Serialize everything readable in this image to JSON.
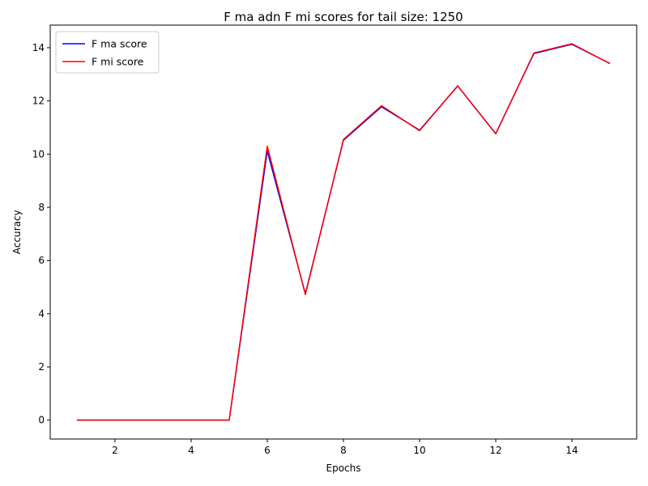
{
  "chart_data": {
    "type": "line",
    "title": "F ma adn F mi scores for tail size: 1250",
    "xlabel": "Epochs",
    "ylabel": "Accuracy",
    "xlim": [
      0.3,
      15.7
    ],
    "ylim": [
      -0.71,
      14.85
    ],
    "xticks": [
      2,
      4,
      6,
      8,
      10,
      12,
      14
    ],
    "yticks": [
      0,
      2,
      4,
      6,
      8,
      10,
      12,
      14
    ],
    "legend_position": "top-left",
    "grid": false,
    "x": [
      1,
      2,
      3,
      4,
      5,
      6,
      7,
      8,
      9,
      10,
      11,
      12,
      13,
      14,
      15
    ],
    "series": [
      {
        "name": "F ma score",
        "color": "#0000ff",
        "values": [
          0,
          0,
          0,
          0,
          0,
          10.12,
          4.75,
          10.52,
          11.78,
          10.9,
          12.56,
          10.77,
          13.78,
          14.13,
          13.41
        ]
      },
      {
        "name": "F mi score",
        "color": "#ff0000",
        "values": [
          0,
          0,
          0,
          0,
          0,
          10.3,
          4.72,
          10.55,
          11.82,
          10.88,
          12.57,
          10.76,
          13.8,
          14.15,
          13.4
        ]
      }
    ]
  }
}
